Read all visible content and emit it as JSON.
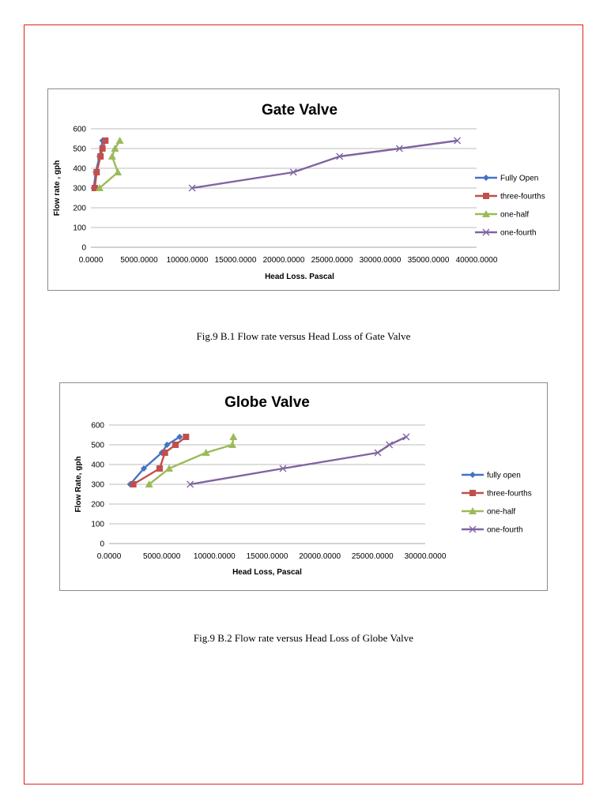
{
  "colors": {
    "page_border": "#e0201c",
    "series": [
      "#4472c4",
      "#c0504d",
      "#9bbb59",
      "#8064a2"
    ]
  },
  "captions": {
    "fig1": "Fig.9 B.1 Flow rate versus Head Loss of Gate Valve",
    "fig2": "Fig.9 B.2 Flow rate versus Head Loss of Globe Valve"
  },
  "chart_data": [
    {
      "type": "line",
      "title": "Gate Valve",
      "xlabel": "Head Loss. Pascal",
      "ylabel": "Flow rate , gph",
      "xlim": [
        0,
        40000
      ],
      "ylim": [
        0,
        600
      ],
      "x_ticks": [
        "0.0000",
        "5000.0000",
        "10000.0000",
        "15000.0000",
        "20000.0000",
        "25000.0000",
        "30000.0000",
        "35000.0000",
        "40000.0000"
      ],
      "y_ticks": [
        "0",
        "100",
        "200",
        "300",
        "400",
        "500",
        "600"
      ],
      "grid": true,
      "legend_position": "right",
      "series": [
        {
          "name": "Fully Open",
          "marker": "diamond",
          "x": [
            300,
            500,
            900,
            1200
          ],
          "y": [
            300,
            380,
            460,
            540
          ]
        },
        {
          "name": "three-fourths",
          "marker": "square",
          "x": [
            400,
            600,
            1000,
            1200,
            1500
          ],
          "y": [
            300,
            380,
            460,
            500,
            540
          ]
        },
        {
          "name": "one-half",
          "marker": "triangle",
          "x": [
            900,
            2800,
            2200,
            2500,
            3000
          ],
          "y": [
            300,
            380,
            460,
            500,
            540
          ]
        },
        {
          "name": "one-fourth",
          "marker": "x",
          "x": [
            10500,
            21000,
            25800,
            32000,
            38000
          ],
          "y": [
            300,
            380,
            460,
            500,
            540
          ]
        }
      ]
    },
    {
      "type": "line",
      "title": "Globe Valve",
      "xlabel": "Head Loss, Pascal",
      "ylabel": "Flow Rate, gph",
      "xlim": [
        0,
        30000
      ],
      "ylim": [
        0,
        600
      ],
      "x_ticks": [
        "0.0000",
        "5000.0000",
        "10000.0000",
        "15000.0000",
        "20000.0000",
        "25000.0000",
        "30000.0000"
      ],
      "y_ticks": [
        "0",
        "100",
        "200",
        "300",
        "400",
        "500",
        "600"
      ],
      "grid": true,
      "legend_position": "right",
      "series": [
        {
          "name": "fully open",
          "marker": "diamond",
          "x": [
            2000,
            3300,
            5000,
            5500,
            6700
          ],
          "y": [
            300,
            380,
            460,
            500,
            540
          ]
        },
        {
          "name": "three-fourths",
          "marker": "square",
          "x": [
            2300,
            4800,
            5300,
            6300,
            7300
          ],
          "y": [
            300,
            380,
            460,
            500,
            540
          ]
        },
        {
          "name": "one-half",
          "marker": "triangle",
          "x": [
            3800,
            5700,
            9200,
            11700,
            11800
          ],
          "y": [
            300,
            380,
            460,
            500,
            540
          ]
        },
        {
          "name": "one-fourth",
          "marker": "x",
          "x": [
            7700,
            16500,
            25500,
            26600,
            28200
          ],
          "y": [
            300,
            380,
            460,
            500,
            540
          ]
        }
      ]
    }
  ]
}
